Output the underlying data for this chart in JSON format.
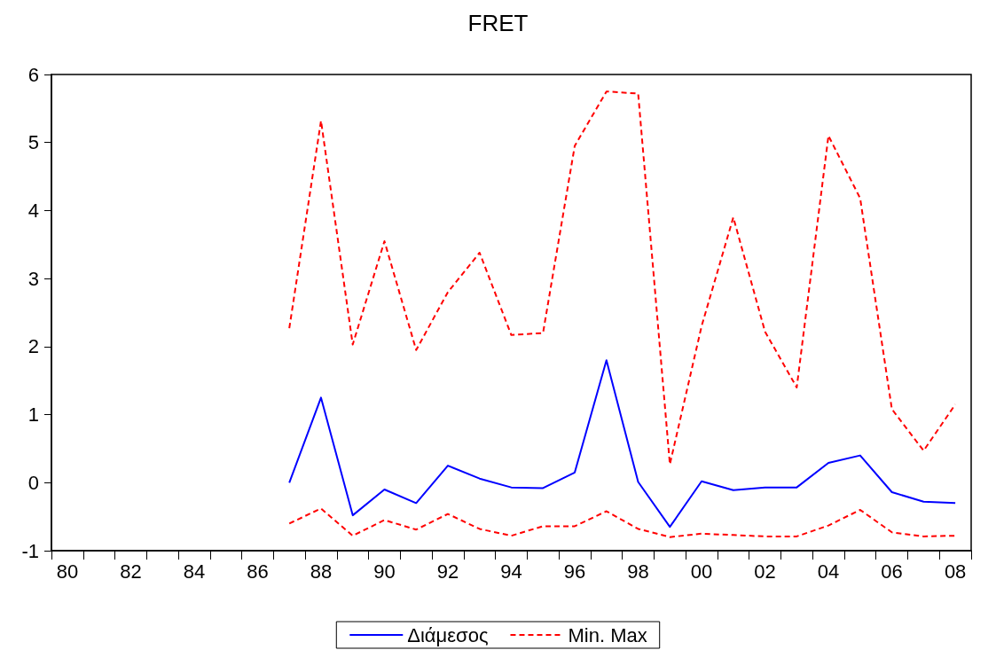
{
  "chart_data": {
    "type": "line",
    "title": "FRET",
    "categories": [
      "80",
      null,
      "82",
      null,
      "84",
      null,
      "86",
      null,
      "88",
      null,
      "90",
      null,
      "92",
      null,
      "94",
      null,
      "96",
      null,
      "98",
      null,
      "00",
      null,
      "02",
      null,
      "04",
      null,
      "06",
      null,
      "08"
    ],
    "series": [
      {
        "name": "Διάμεσος",
        "color": "#0000ff",
        "line_style": "solid",
        "values": [
          null,
          null,
          null,
          null,
          null,
          null,
          null,
          0.0,
          1.25,
          -0.48,
          -0.1,
          -0.3,
          0.25,
          0.06,
          -0.07,
          -0.08,
          0.15,
          1.8,
          0.01,
          -0.65,
          0.02,
          -0.11,
          -0.07,
          -0.07,
          0.29,
          0.4,
          -0.14,
          -0.28,
          -0.3
        ]
      },
      {
        "name": "Min. Max",
        "color": "#ff0000",
        "line_style": "dashed",
        "values": [
          null,
          null,
          null,
          null,
          null,
          null,
          null,
          2.27,
          5.32,
          2.03,
          3.55,
          1.95,
          2.8,
          3.38,
          2.17,
          2.2,
          4.95,
          5.75,
          5.72,
          0.27,
          2.3,
          3.9,
          2.22,
          1.4,
          5.1,
          4.18,
          1.08,
          0.47,
          1.15
        ]
      },
      {
        "color": "#ff0000",
        "line_style": "dashed",
        "values": [
          null,
          null,
          null,
          null,
          null,
          null,
          null,
          -0.6,
          -0.38,
          -0.78,
          -0.55,
          -0.69,
          -0.46,
          -0.68,
          -0.78,
          -0.64,
          -0.64,
          -0.42,
          -0.68,
          -0.8,
          -0.75,
          -0.77,
          -0.79,
          -0.79,
          -0.63,
          -0.4,
          -0.73,
          -0.79,
          -0.78
        ]
      }
    ],
    "ylim": [
      -1,
      6
    ],
    "yticks": [
      -1,
      0,
      1,
      2,
      3,
      4,
      5,
      6
    ],
    "grid": false,
    "legend": "bottom",
    "marker": "none"
  }
}
